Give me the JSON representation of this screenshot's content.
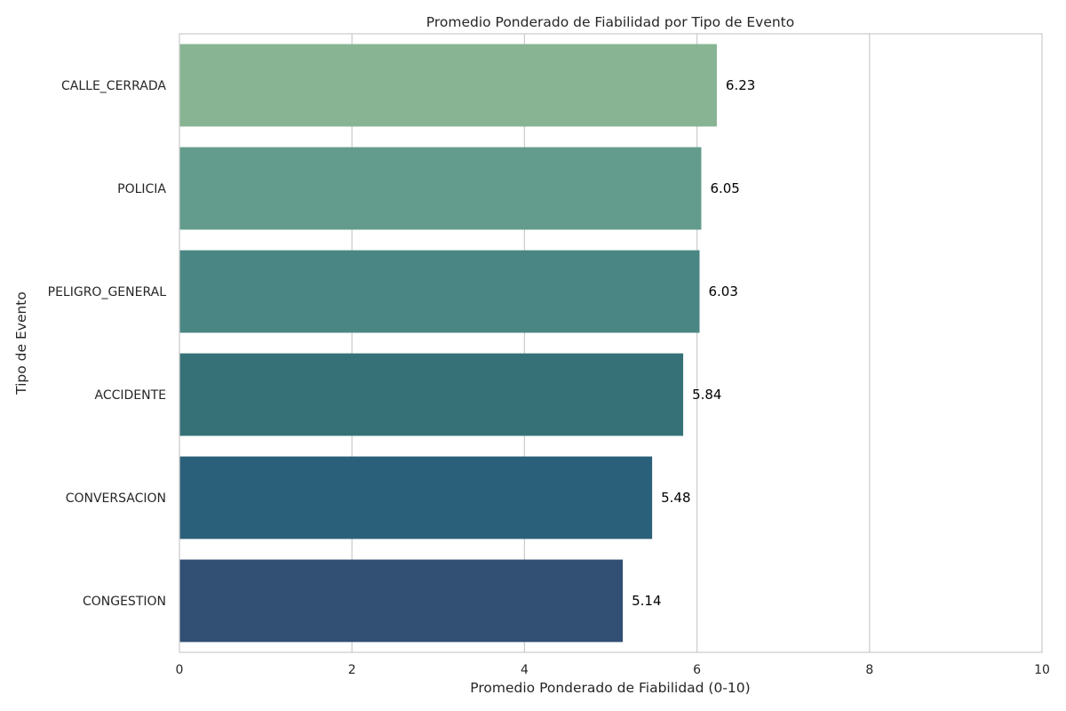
{
  "chart_data": {
    "type": "bar",
    "orientation": "horizontal",
    "title": "Promedio Ponderado de Fiabilidad por Tipo de Evento",
    "xlabel": "Promedio Ponderado de Fiabilidad (0-10)",
    "ylabel": "Tipo de Evento",
    "xlim": [
      0,
      10
    ],
    "x_ticks": [
      "0",
      "2",
      "4",
      "6",
      "8",
      "10"
    ],
    "grid": "vertical",
    "categories": [
      "CALLE_CERRADA",
      "POLICIA",
      "PELIGRO_GENERAL",
      "ACCIDENTE",
      "CONVERSACION",
      "CONGESTION"
    ],
    "values": [
      6.23,
      6.05,
      6.03,
      5.84,
      5.48,
      5.14
    ],
    "value_labels": [
      "6.23",
      "6.05",
      "6.03",
      "5.84",
      "5.48",
      "5.14"
    ],
    "colors": [
      "#88b493",
      "#639c8c",
      "#4a8683",
      "#367178",
      "#2b607b",
      "#324f74"
    ]
  }
}
